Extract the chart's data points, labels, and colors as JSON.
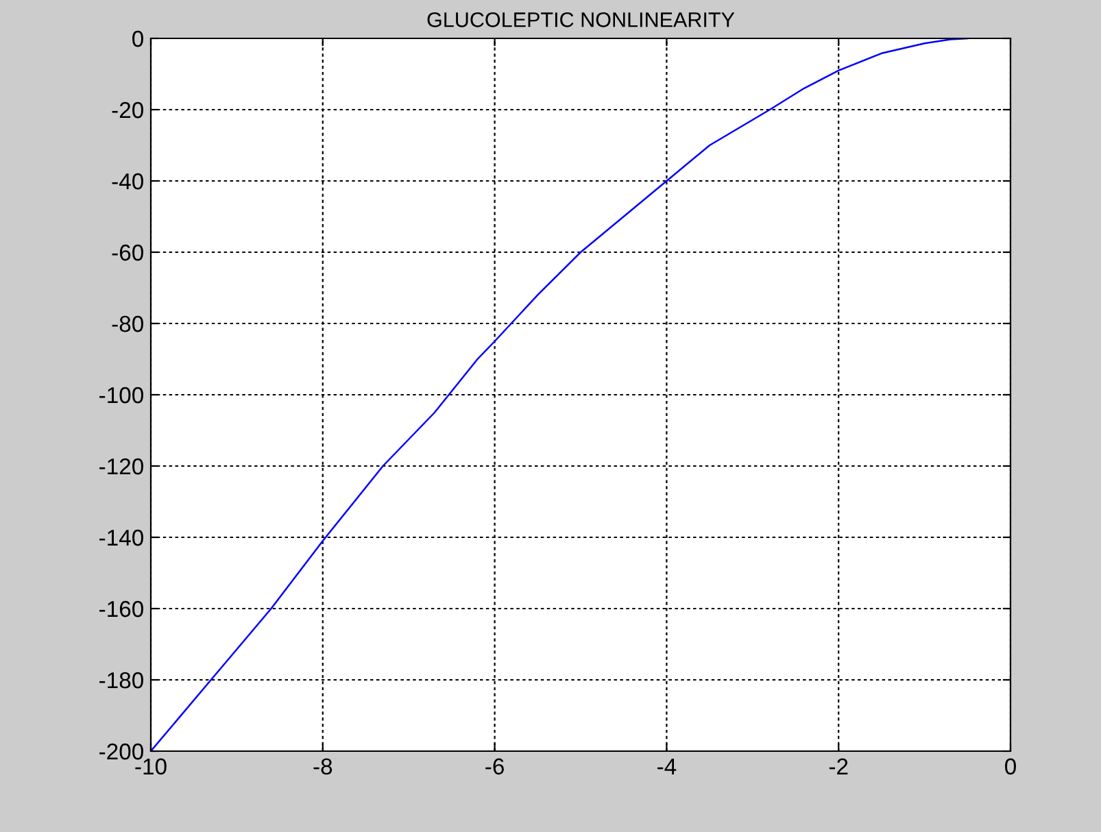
{
  "chart_data": {
    "type": "line",
    "title": "GLUCOLEPTIC NONLINEARITY",
    "x": [
      -10,
      -9.3,
      -8.6,
      -8,
      -7.3,
      -6.7,
      -6.2,
      -6,
      -5.5,
      -5,
      -4.5,
      -4,
      -3.5,
      -2.8,
      -2.4,
      -2,
      -1.5,
      -1,
      -0.7,
      -0.5
    ],
    "series": [
      {
        "color": "#0000ff",
        "values": [
          -200,
          -180,
          -160,
          -141,
          -120,
          -105,
          -90,
          -85,
          -72,
          -60,
          -50,
          -40,
          -30,
          -20,
          -14,
          -9,
          -4.2,
          -1.4,
          -0.3,
          0
        ]
      }
    ],
    "xlim": [
      -10,
      0
    ],
    "xticks": [
      -10,
      -8,
      -6,
      -4,
      -2,
      0
    ],
    "ylim": [
      -200,
      0
    ],
    "yticks": [
      -200,
      -180,
      -160,
      -140,
      -120,
      -100,
      -80,
      -60,
      -40,
      -20,
      0
    ],
    "grid": true,
    "line_style": "solid",
    "marker": "none"
  }
}
